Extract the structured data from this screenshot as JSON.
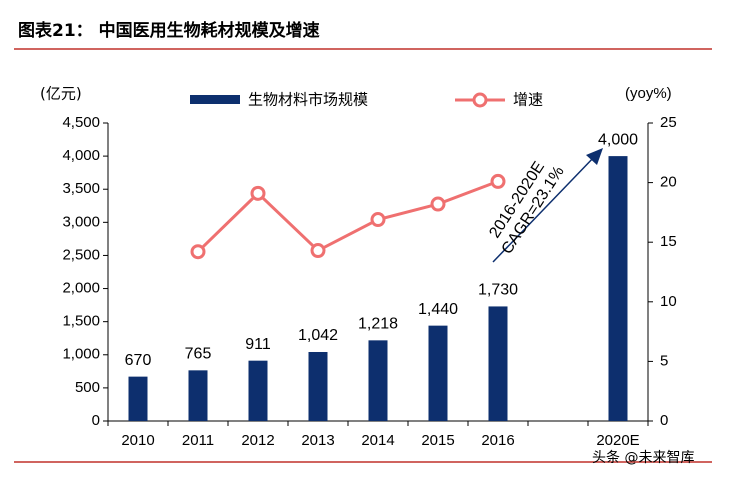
{
  "chart_data": {
    "type": "bar-line",
    "title": "图表21：  中国医用生物耗材规模及增速",
    "y_label": "(亿元)",
    "y2_label": "(yoy%)",
    "categories": [
      "2010",
      "2011",
      "2012",
      "2013",
      "2014",
      "2015",
      "2016",
      null,
      "2020E"
    ],
    "series": [
      {
        "name": "生物材料市场规模",
        "type": "bar",
        "color": "#0d2f6e",
        "values": [
          670,
          765,
          911,
          1042,
          1218,
          1440,
          1730,
          null,
          4000
        ],
        "value_labels": [
          "670",
          "765",
          "911",
          "1,042",
          "1,218",
          "1,440",
          "1,730",
          null,
          "4,000"
        ]
      },
      {
        "name": "增速",
        "type": "line",
        "color": "#ef7070",
        "axis": "y2",
        "values": [
          null,
          14.2,
          19.1,
          14.3,
          16.9,
          18.2,
          20.1,
          null,
          null
        ]
      }
    ],
    "ylim": [
      0,
      4500
    ],
    "yticks": [
      0,
      500,
      {
        "value": 1000,
        "label": "1,000"
      },
      {
        "value": 1500,
        "label": "1,500"
      },
      {
        "value": 2000,
        "label": "2,000"
      },
      {
        "value": 2500,
        "label": "2,500"
      },
      {
        "value": 3000,
        "label": "3,000"
      },
      {
        "value": 3500,
        "label": "3,500"
      },
      {
        "value": 4000,
        "label": "4,000"
      },
      {
        "value": 4500,
        "label": "4,500"
      }
    ],
    "y2lim": [
      0,
      25
    ],
    "y2ticks": [
      0,
      5,
      10,
      15,
      20,
      25
    ],
    "annotation": [
      "2016-2020E",
      "CAGR=23.1%"
    ],
    "watermark": "头条 @未来智库",
    "grid": false
  }
}
